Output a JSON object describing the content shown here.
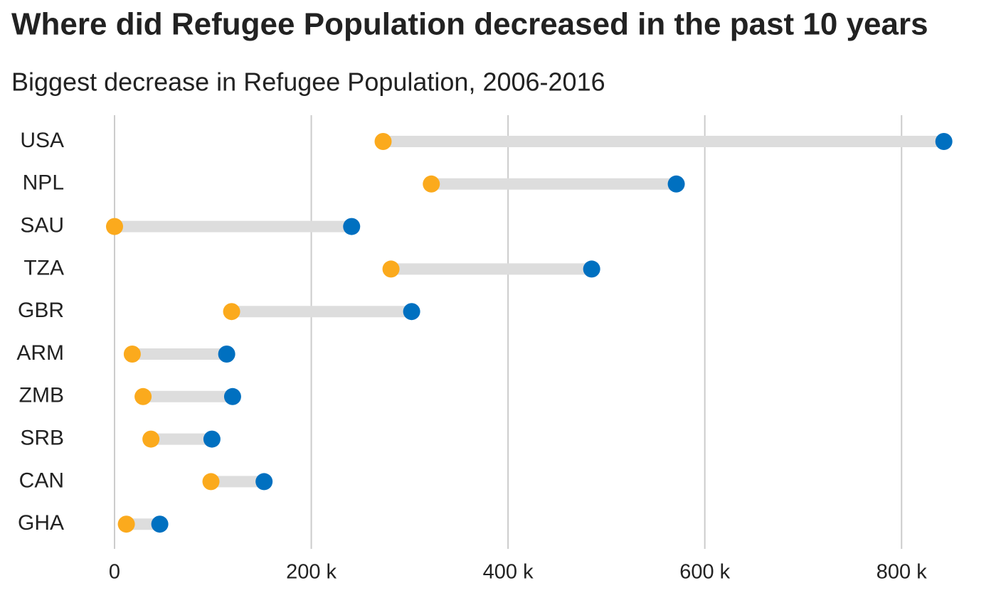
{
  "chart_data": {
    "type": "dumbbell",
    "title": "Where did Refugee Population decreased in the past 10 years",
    "subtitle": "Biggest decrease in Refugee Population, 2006-2016",
    "categories": [
      "USA",
      "NPL",
      "SAU",
      "TZA",
      "GBR",
      "ARM",
      "ZMB",
      "SRB",
      "CAN",
      "GHA"
    ],
    "series": [
      {
        "color": "#fbaa1d",
        "values": [
          273000,
          322000,
          0,
          281000,
          119000,
          18000,
          29000,
          37000,
          98000,
          12000
        ]
      },
      {
        "color": "#0070c0",
        "values": [
          843000,
          571000,
          241000,
          485000,
          302000,
          114000,
          120000,
          99000,
          152000,
          46000
        ]
      }
    ],
    "connector_color": "#dddddd",
    "xlim": [
      0,
      896000
    ],
    "xticks": [
      0,
      {
        "value": 200000,
        "label": "200 k"
      },
      {
        "value": 400000,
        "label": "400 k"
      },
      {
        "value": 600000,
        "label": "600 k"
      },
      {
        "value": 800000,
        "label": "800 k"
      }
    ],
    "grid": true
  }
}
